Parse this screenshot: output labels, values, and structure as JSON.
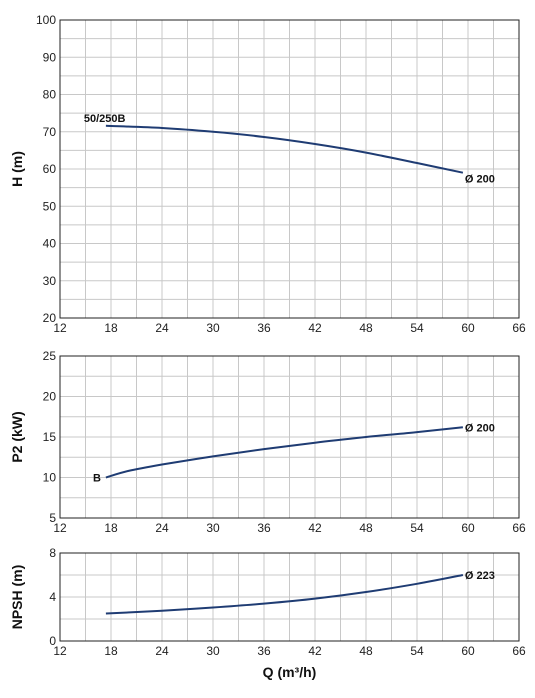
{
  "chart_data": [
    {
      "type": "line",
      "ylabel": "H (m)",
      "xlim": [
        12,
        66
      ],
      "ylim": [
        20,
        100
      ],
      "xticks": [
        12,
        18,
        24,
        30,
        36,
        42,
        48,
        54,
        60,
        66
      ],
      "yticks": [
        20,
        30,
        40,
        50,
        60,
        70,
        80,
        90,
        100
      ],
      "grid": true,
      "series": [
        {
          "name": "50/250B",
          "x": [
            17.4,
            24,
            30,
            36,
            42,
            48,
            54,
            59.4
          ],
          "y": [
            71.6,
            71.0,
            70.0,
            68.6,
            66.7,
            64.4,
            61.6,
            59.0
          ]
        }
      ],
      "annotations": [
        {
          "text": "50/250B",
          "x": 17.4,
          "y": 71.6
        },
        {
          "text": "Ø 200",
          "x": 59.4,
          "y": 59.0
        }
      ]
    },
    {
      "type": "line",
      "ylabel": "P2 (kW)",
      "xlim": [
        12,
        66
      ],
      "ylim": [
        5,
        25
      ],
      "xticks": [
        12,
        18,
        24,
        30,
        36,
        42,
        48,
        54,
        60,
        66
      ],
      "yticks": [
        5,
        10,
        15,
        20,
        25
      ],
      "grid": true,
      "series": [
        {
          "name": "B",
          "x": [
            17.4,
            20,
            24,
            30,
            36,
            42,
            48,
            54,
            59.4
          ],
          "y": [
            10.0,
            10.8,
            11.6,
            12.6,
            13.5,
            14.3,
            15.0,
            15.6,
            16.2
          ]
        }
      ],
      "annotations": [
        {
          "text": "B",
          "x": 17.4,
          "y": 10.0
        },
        {
          "text": "Ø 200",
          "x": 59.4,
          "y": 16.2
        }
      ]
    },
    {
      "type": "line",
      "ylabel": "NPSH (m)",
      "xlabel": "Q (m³/h)",
      "xlim": [
        12,
        66
      ],
      "ylim": [
        0,
        8
      ],
      "xticks": [
        12,
        18,
        24,
        30,
        36,
        42,
        48,
        54,
        60,
        66
      ],
      "yticks": [
        0,
        4,
        8
      ],
      "grid": true,
      "series": [
        {
          "name": "",
          "x": [
            17.4,
            24,
            30,
            36,
            42,
            48,
            54,
            59.4
          ],
          "y": [
            2.5,
            2.75,
            3.05,
            3.4,
            3.85,
            4.45,
            5.2,
            6.0
          ]
        }
      ],
      "annotations": [
        {
          "text": "Ø 223",
          "x": 59.4,
          "y": 6.0
        }
      ]
    }
  ]
}
